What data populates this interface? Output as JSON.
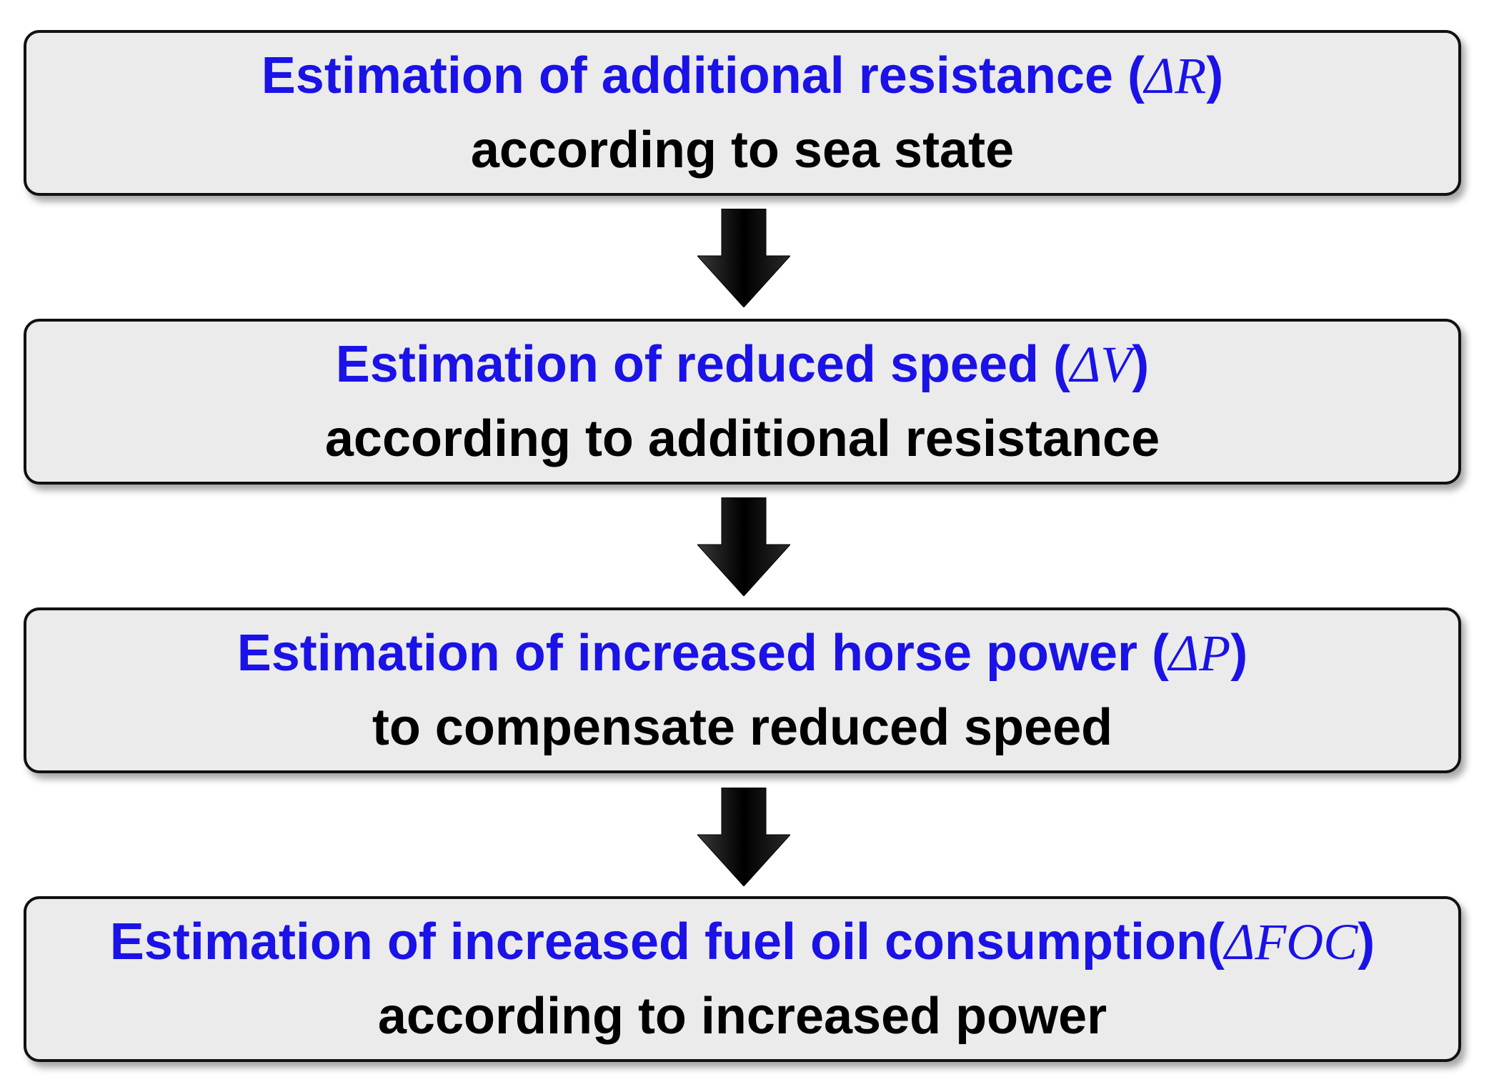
{
  "colors": {
    "title": "#1a12e6",
    "subtitle": "#000000",
    "box_fill": "#ebebeb",
    "box_border": "#111111",
    "arrow": "#000000"
  },
  "steps": [
    {
      "title": "Estimation of additional resistance (",
      "symbol": "ΔR",
      "close": ")",
      "subtitle": "according to sea state"
    },
    {
      "title": "Estimation of reduced speed (",
      "symbol": "ΔV",
      "close": ")",
      "subtitle": "according to additional resistance"
    },
    {
      "title": "Estimation of increased horse power (",
      "symbol": "ΔP",
      "close": ")",
      "subtitle": "to compensate reduced speed"
    },
    {
      "title": "Estimation of increased fuel oil consumption(",
      "symbol": "ΔFOC",
      "close": ")",
      "subtitle": "according to increased power"
    }
  ],
  "arrows": [
    {
      "from": 1,
      "to": 2,
      "icon": "down-arrow-icon"
    },
    {
      "from": 2,
      "to": 3,
      "icon": "down-arrow-icon"
    },
    {
      "from": 3,
      "to": 4,
      "icon": "down-arrow-icon"
    }
  ]
}
